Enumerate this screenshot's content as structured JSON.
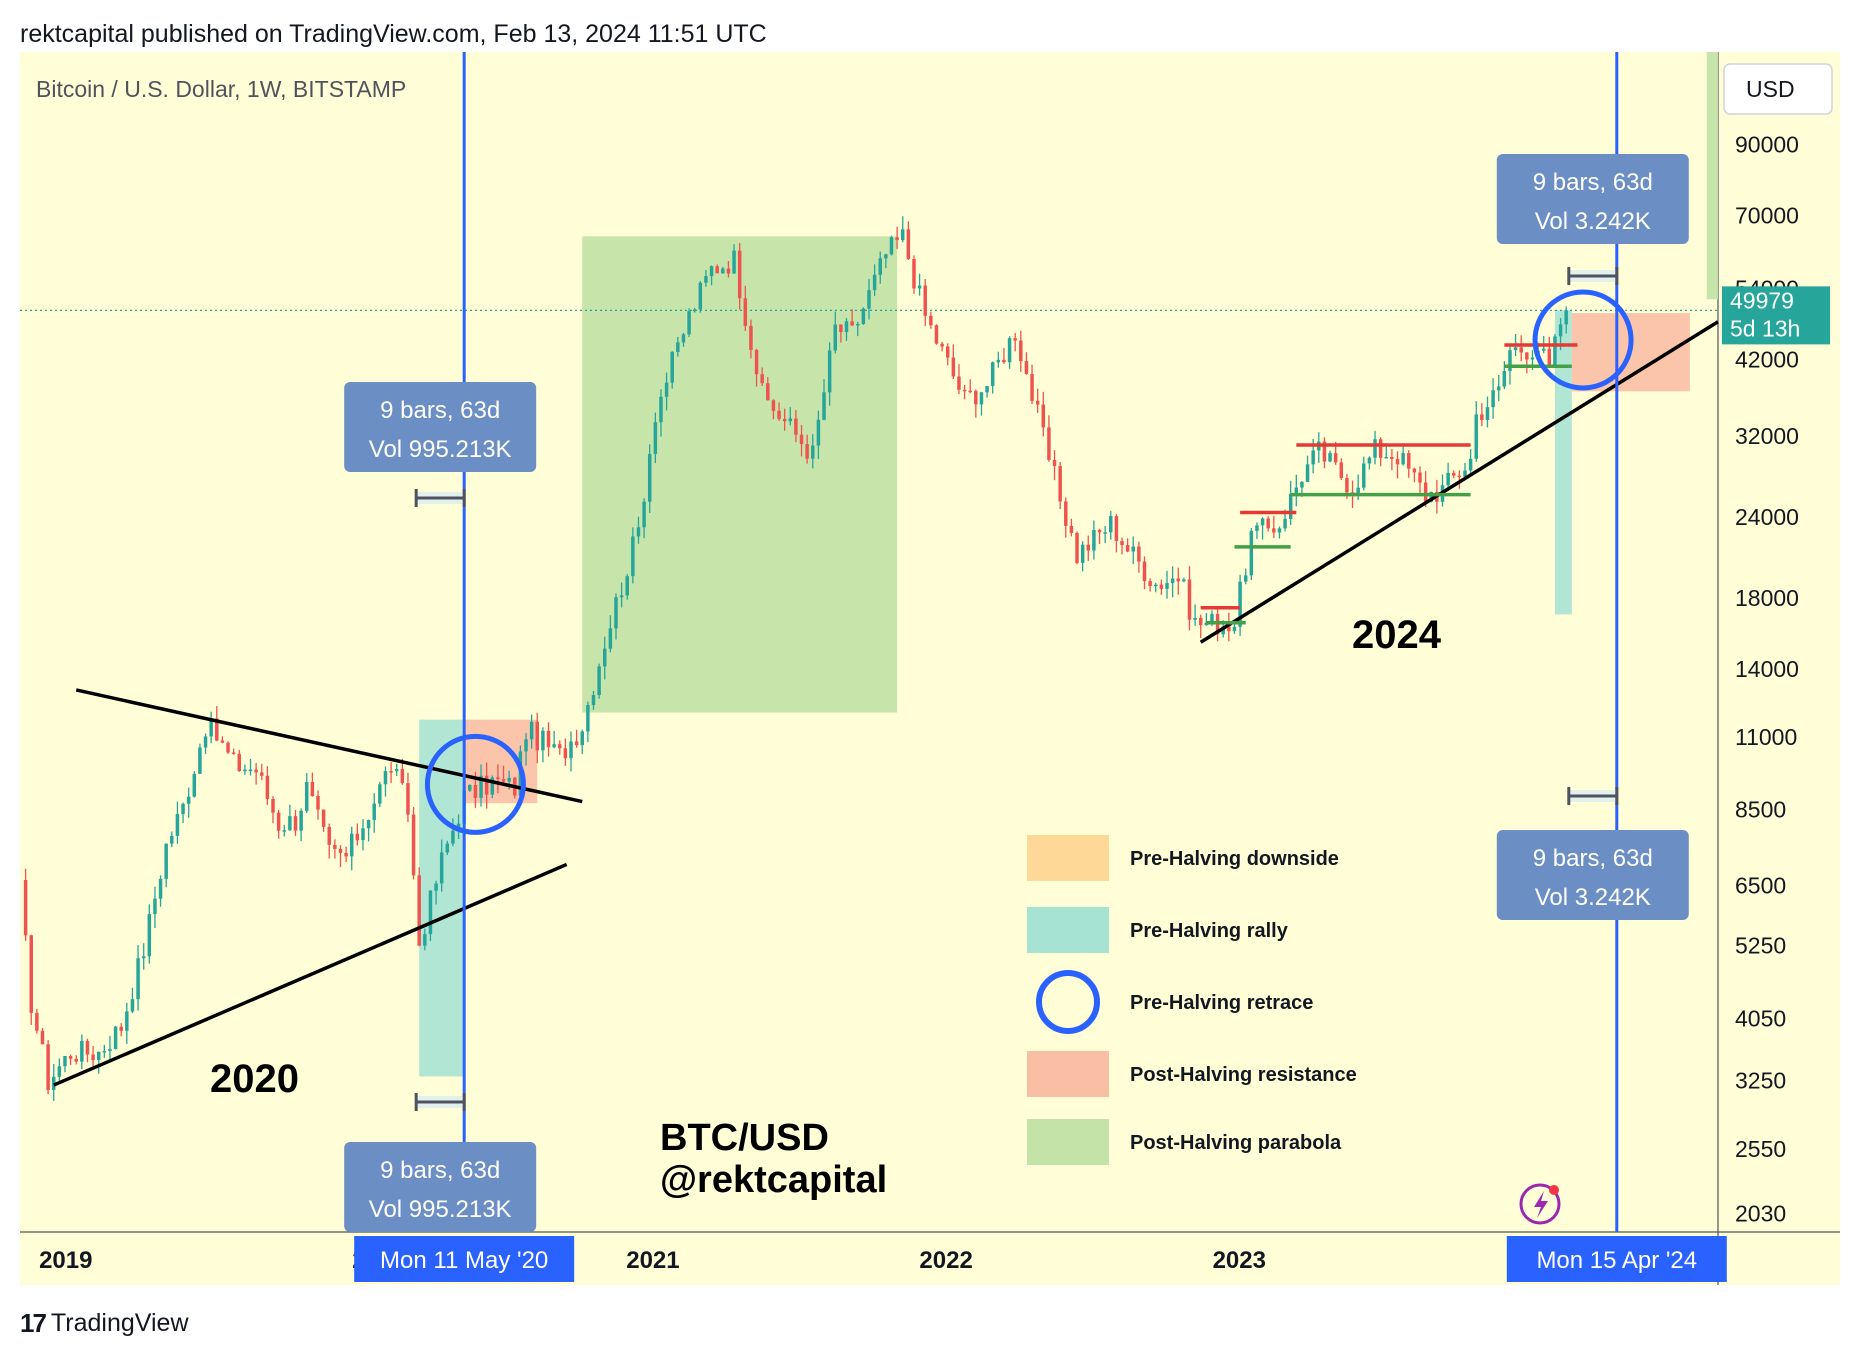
{
  "header": {
    "publish_line": "rektcapital published on TradingView.com, Feb 13, 2024 11:51 UTC"
  },
  "symbol_line": "Bitcoin / U.S. Dollar, 1W, BITSTAMP",
  "currency_button": "USD",
  "footer": {
    "brand": "TradingView",
    "brand_mark": "17"
  },
  "colors": {
    "background": "#fffed6",
    "up": "#26a69a",
    "down": "#ef5350",
    "blue_line": "#2962ff",
    "rally_zone": "#a7e3d3",
    "resistance_zone": "#f9bfa5",
    "parabola_zone": "#c4e3a8",
    "downside_zone": "#fdd896",
    "label_box": "#6b8ec4",
    "date_box": "#2962ff",
    "price_box": "#26a69a"
  },
  "chart_data": {
    "type": "candlestick",
    "scale": "log",
    "ylim": [
      1900,
      125000
    ],
    "y_ticks": [
      "90000",
      "70000",
      "54000",
      "42000",
      "32000",
      "24000",
      "18000",
      "14000",
      "11000",
      "8500",
      "6500",
      "5250",
      "4050",
      "3250",
      "2550",
      "2030"
    ],
    "y_tick_values": [
      90000,
      70000,
      54000,
      42000,
      32000,
      24000,
      18000,
      14000,
      11000,
      8500,
      6500,
      5250,
      4050,
      3250,
      2550,
      2030
    ],
    "x_ticks": [
      {
        "label": "2019",
        "date": "2019-01-01"
      },
      {
        "label": "2021",
        "date": "2021-01-01"
      },
      {
        "label": "2022",
        "date": "2022-01-01"
      },
      {
        "label": "2023",
        "date": "2023-01-01"
      }
    ],
    "x_ticks_partial": [
      {
        "label": "2",
        "date": "2020-01-01"
      },
      {
        "label": "2",
        "date": "2024-01-01"
      }
    ],
    "xlim": [
      "2018-11-05",
      "2024-08-19"
    ],
    "current_price": {
      "value": 49979,
      "label": "49979",
      "countdown": "5d 13h"
    },
    "halving_lines": [
      {
        "date": "2020-05-11",
        "label": "Mon 11 May '20"
      },
      {
        "date": "2024-04-15",
        "label": "Mon 15 Apr '24"
      }
    ],
    "measure_labels": [
      {
        "line1": "9 bars, 63d",
        "line2": "Vol 995.213K"
      },
      {
        "line1": "9 bars, 63d",
        "line2": "Vol 995.213K"
      },
      {
        "line1": "9 bars, 63d",
        "line2": "Vol 3.242K"
      },
      {
        "line1": "9 bars, 63d",
        "line2": "Vol 3.242K"
      }
    ],
    "annotations": {
      "cycle_2020": "2020",
      "cycle_2024": "2024",
      "watermark_line1": "BTC/USD",
      "watermark_line2": "@rektcapital"
    },
    "legend": [
      {
        "label": "Pre-Halving downside",
        "kind": "downside"
      },
      {
        "label": "Pre-Halving rally",
        "kind": "rally"
      },
      {
        "label": "Pre-Halving retrace",
        "kind": "retrace"
      },
      {
        "label": "Post-Halving resistance",
        "kind": "resistance"
      },
      {
        "label": "Post-Halving parabola",
        "kind": "parabola"
      }
    ],
    "zones": [
      {
        "kind": "rally",
        "x0": "2020-03-16",
        "x1": "2020-05-11",
        "y0": 3300,
        "y1": 11700
      },
      {
        "kind": "resistance",
        "x0": "2020-05-11",
        "x1": "2020-08-10",
        "y0": 8700,
        "y1": 11700
      },
      {
        "kind": "parabola",
        "x0": "2020-10-05",
        "x1": "2021-11-01",
        "y0": 12000,
        "y1": 65000
      },
      {
        "kind": "rally",
        "x0": "2024-01-29",
        "x1": "2024-02-19",
        "y0": 17000,
        "y1": 50000
      },
      {
        "kind": "resistance",
        "x0": "2024-02-19",
        "x1": "2024-07-15",
        "y0": 37500,
        "y1": 49500
      },
      {
        "kind": "parabola",
        "x0": "2024-08-05",
        "x1": "2024-08-19",
        "y0": 52000,
        "y1": 125000
      }
    ],
    "trendlines": [
      {
        "x0": "2019-01-14",
        "y0": 9800,
        "x1": "2020-08-10",
        "y1": 9000,
        "note": "upper-x",
        "y_at_start": 13000
      },
      {
        "x0": "2018-12-17",
        "y0": 3200,
        "x1": "2020-08-03",
        "y1": 7000
      },
      {
        "x0": "2022-11-14",
        "y0": 15400,
        "x1": "2024-07-30",
        "y1": 46000
      }
    ],
    "range_lines": [
      {
        "color": "red",
        "x0": "2022-11-14",
        "x1": "2023-01-02",
        "y": 17400
      },
      {
        "color": "green",
        "x0": "2022-11-21",
        "x1": "2023-01-09",
        "y": 16500
      },
      {
        "color": "red",
        "x0": "2023-01-02",
        "x1": "2023-03-13",
        "y": 24400
      },
      {
        "color": "green",
        "x0": "2022-12-26",
        "x1": "2023-03-06",
        "y": 21600
      },
      {
        "color": "red",
        "x0": "2023-03-13",
        "x1": "2023-10-16",
        "y": 31000
      },
      {
        "color": "green",
        "x0": "2023-03-06",
        "x1": "2023-10-16",
        "y": 26000
      },
      {
        "color": "red",
        "x0": "2023-11-27",
        "x1": "2024-02-26",
        "y": 44200
      },
      {
        "color": "green",
        "x0": "2023-11-27",
        "x1": "2024-02-19",
        "y": 41000
      }
    ],
    "retrace_circles": [
      {
        "date": "2020-05-25",
        "price": 9300
      },
      {
        "date": "2024-03-04",
        "price": 45000
      }
    ],
    "weekly_close_anchors": [
      [
        "2018-11-05",
        6400
      ],
      [
        "2018-11-19",
        4300
      ],
      [
        "2018-12-10",
        3250
      ],
      [
        "2019-01-07",
        3600
      ],
      [
        "2019-02-11",
        3600
      ],
      [
        "2019-03-11",
        3950
      ],
      [
        "2019-04-08",
        5200
      ],
      [
        "2019-05-06",
        7500
      ],
      [
        "2019-05-27",
        8600
      ],
      [
        "2019-06-24",
        11500
      ],
      [
        "2019-07-08",
        11000
      ],
      [
        "2019-07-29",
        10000
      ],
      [
        "2019-08-26",
        9800
      ],
      [
        "2019-09-23",
        8100
      ],
      [
        "2019-10-14",
        8200
      ],
      [
        "2019-10-28",
        9200
      ],
      [
        "2019-11-25",
        7300
      ],
      [
        "2019-12-16",
        7200
      ],
      [
        "2020-01-06",
        8100
      ],
      [
        "2020-02-10",
        10000
      ],
      [
        "2020-03-02",
        8500
      ],
      [
        "2020-03-16",
        5300
      ],
      [
        "2020-04-13",
        7100
      ],
      [
        "2020-05-11",
        8900
      ],
      [
        "2020-06-15",
        9400
      ],
      [
        "2020-07-13",
        9200
      ],
      [
        "2020-07-27",
        11300
      ],
      [
        "2020-09-07",
        10300
      ],
      [
        "2020-10-05",
        11500
      ],
      [
        "2020-11-02",
        15500
      ],
      [
        "2020-12-14",
        23000
      ],
      [
        "2021-01-04",
        35000
      ],
      [
        "2021-02-15",
        49000
      ],
      [
        "2021-03-15",
        58000
      ],
      [
        "2021-04-12",
        60000
      ],
      [
        "2021-05-17",
        37000
      ],
      [
        "2021-06-21",
        33000
      ],
      [
        "2021-07-19",
        30000
      ],
      [
        "2021-08-16",
        47000
      ],
      [
        "2021-09-06",
        46000
      ],
      [
        "2021-10-18",
        61000
      ],
      [
        "2021-11-08",
        65000
      ],
      [
        "2021-12-06",
        49000
      ],
      [
        "2022-01-24",
        36500
      ],
      [
        "2022-02-21",
        38500
      ],
      [
        "2022-03-28",
        46500
      ],
      [
        "2022-05-09",
        29500
      ],
      [
        "2022-06-13",
        21000
      ],
      [
        "2022-07-25",
        23500
      ],
      [
        "2022-08-15",
        21500
      ],
      [
        "2022-09-19",
        19000
      ],
      [
        "2022-10-17",
        19500
      ],
      [
        "2022-11-07",
        16500
      ],
      [
        "2022-12-26",
        16500
      ],
      [
        "2023-01-16",
        22500
      ],
      [
        "2023-02-20",
        23500
      ],
      [
        "2023-03-20",
        28000
      ],
      [
        "2023-04-10",
        30300
      ],
      [
        "2023-05-22",
        26800
      ],
      [
        "2023-06-19",
        30500
      ],
      [
        "2023-07-17",
        30000
      ],
      [
        "2023-08-21",
        26000
      ],
      [
        "2023-09-11",
        26500
      ],
      [
        "2023-10-16",
        29500
      ],
      [
        "2023-10-23",
        34500
      ],
      [
        "2023-11-20",
        37500
      ],
      [
        "2023-12-04",
        43500
      ],
      [
        "2024-01-08",
        44000
      ],
      [
        "2024-01-22",
        40500
      ],
      [
        "2024-02-05",
        48000
      ],
      [
        "2024-02-12",
        49979
      ]
    ]
  }
}
